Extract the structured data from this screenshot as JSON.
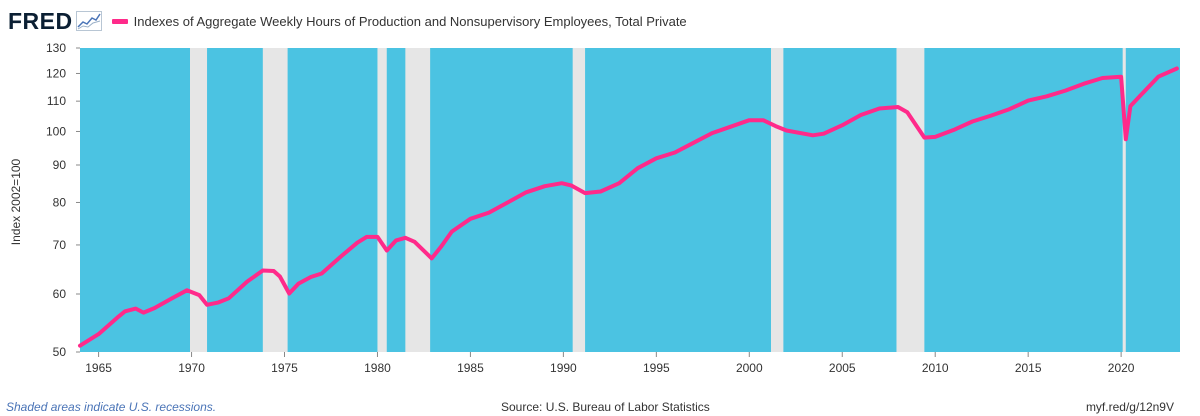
{
  "header": {
    "logo_text": "FRED",
    "logo_icon": "trend-chart-icon"
  },
  "colors": {
    "plot_background": "#4bc3e2",
    "recession_shade": "#e6e6e6",
    "series_line": "#ff2a8a"
  },
  "chart_data": {
    "type": "line",
    "title": "",
    "ylabel": "Index 2002=100",
    "xlabel": "",
    "y_scale": "log",
    "ylim": [
      50,
      130
    ],
    "xlim": [
      "1964-01",
      "2023-03"
    ],
    "yticks": [
      50,
      60,
      70,
      80,
      90,
      100,
      110,
      120,
      130
    ],
    "xticks": [
      1965,
      1970,
      1975,
      1980,
      1985,
      1990,
      1995,
      2000,
      2005,
      2010,
      2015,
      2020
    ],
    "legend_position": "top-left",
    "grid": false,
    "series": [
      {
        "name": "Indexes of Aggregate Weekly Hours of Production and Nonsupervisory Employees, Total Private",
        "x": [
          "1964-01",
          "1965-01",
          "1966-01",
          "1966-06",
          "1967-01",
          "1967-06",
          "1968-01",
          "1969-01",
          "1969-10",
          "1970-06",
          "1970-11",
          "1971-06",
          "1972-01",
          "1973-01",
          "1973-11",
          "1974-06",
          "1974-10",
          "1975-04",
          "1975-10",
          "1976-06",
          "1977-01",
          "1978-01",
          "1978-12",
          "1979-06",
          "1980-01",
          "1980-07",
          "1981-01",
          "1981-07",
          "1982-01",
          "1982-12",
          "1983-06",
          "1984-01",
          "1985-01",
          "1986-01",
          "1987-01",
          "1988-01",
          "1989-01",
          "1989-12",
          "1990-06",
          "1991-03",
          "1992-01",
          "1993-01",
          "1994-01",
          "1995-01",
          "1996-01",
          "1997-01",
          "1998-01",
          "1999-01",
          "2000-01",
          "2000-10",
          "2001-06",
          "2002-01",
          "2003-06",
          "2004-01",
          "2005-01",
          "2006-01",
          "2007-01",
          "2008-01",
          "2008-07",
          "2009-06",
          "2010-01",
          "2011-01",
          "2012-01",
          "2013-01",
          "2014-01",
          "2015-01",
          "2016-01",
          "2017-01",
          "2018-01",
          "2019-01",
          "2020-01",
          "2020-04",
          "2020-07",
          "2021-01",
          "2022-01",
          "2023-01"
        ],
        "values": [
          51.0,
          52.9,
          55.7,
          56.8,
          57.3,
          56.6,
          57.4,
          59.3,
          60.7,
          59.8,
          58.0,
          58.4,
          59.2,
          62.4,
          64.6,
          64.5,
          63.4,
          60.1,
          62.0,
          63.3,
          64.0,
          67.4,
          70.5,
          71.8,
          71.8,
          68.8,
          71.0,
          71.6,
          70.7,
          67.1,
          69.6,
          73.0,
          76.0,
          77.5,
          80.0,
          82.6,
          84.2,
          85.0,
          84.4,
          82.4,
          82.8,
          85.0,
          89.1,
          91.9,
          93.6,
          96.5,
          99.5,
          101.5,
          103.6,
          103.6,
          101.7,
          100.3,
          98.8,
          99.3,
          102.0,
          105.3,
          107.5,
          108.0,
          106.2,
          98.1,
          98.3,
          100.5,
          103.2,
          105.1,
          107.3,
          110.2,
          111.7,
          113.7,
          116.2,
          118.3,
          118.8,
          97.6,
          108.3,
          111.7,
          118.8,
          121.9
        ]
      }
    ],
    "recessions": [
      [
        "1969-12",
        "1970-11"
      ],
      [
        "1973-11",
        "1975-03"
      ],
      [
        "1980-01",
        "1980-07"
      ],
      [
        "1981-07",
        "1982-11"
      ],
      [
        "1990-07",
        "1991-03"
      ],
      [
        "2001-03",
        "2001-11"
      ],
      [
        "2007-12",
        "2009-06"
      ],
      [
        "2020-02",
        "2020-04"
      ]
    ]
  },
  "footer": {
    "note": "Shaded areas indicate U.S. recessions.",
    "source": "Source: U.S. Bureau of Labor Statistics",
    "short_url": "myf.red/g/12n9V"
  }
}
